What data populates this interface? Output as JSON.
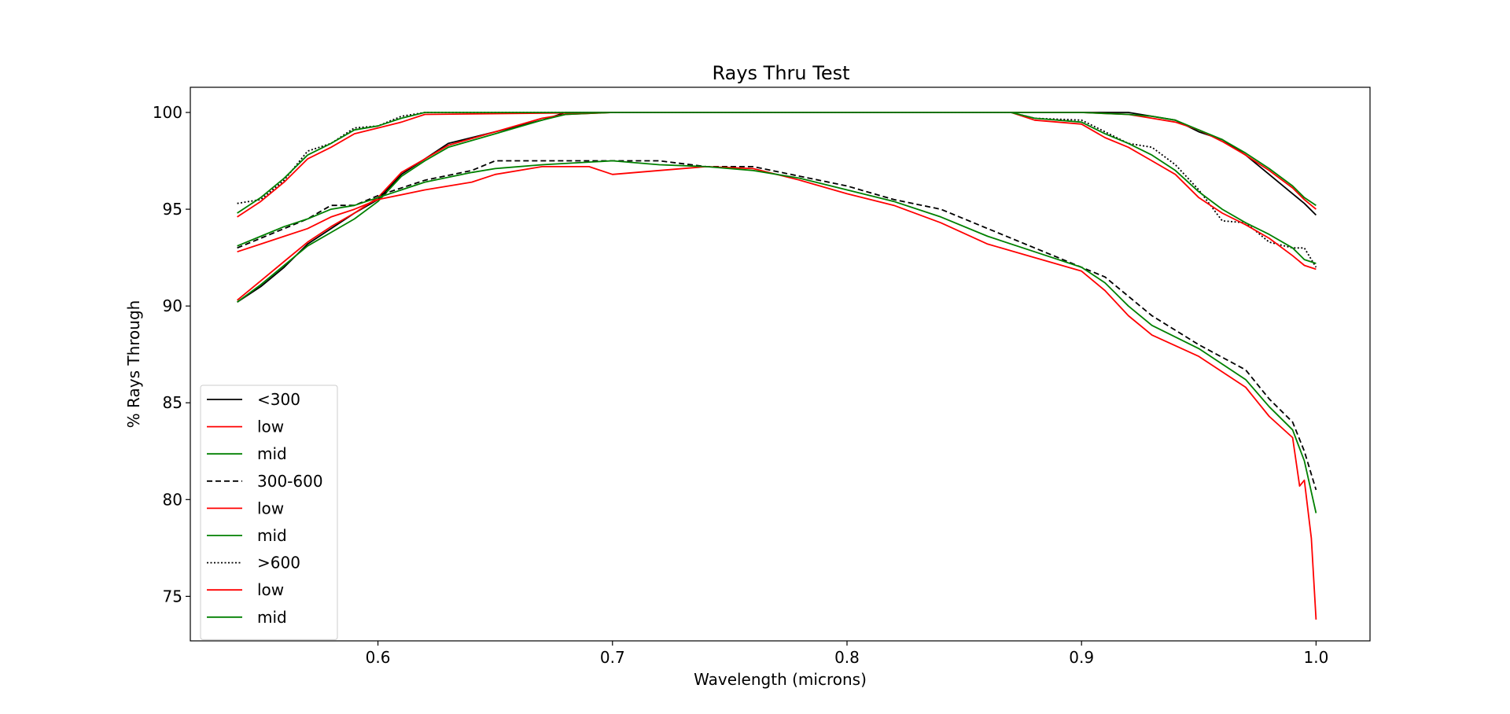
{
  "chart_data": {
    "type": "line",
    "title": "Rays Thru Test",
    "xlabel": "Wavelength (microns)",
    "ylabel": "% Rays Through",
    "xlim": [
      0.52,
      1.023
    ],
    "ylim": [
      72.7,
      101.3
    ],
    "xticks": [
      0.6,
      0.7,
      0.8,
      0.9,
      1.0
    ],
    "xtick_labels": [
      "0.6",
      "0.7",
      "0.8",
      "0.9",
      "1.0"
    ],
    "yticks": [
      75,
      80,
      85,
      90,
      95,
      100
    ],
    "ytick_labels": [
      "75",
      "80",
      "85",
      "90",
      "95",
      "100"
    ],
    "grid": false,
    "legend": {
      "position": "lower-left"
    },
    "series": [
      {
        "name": "<300",
        "color": "#000000",
        "dash": "solid",
        "x": [
          0.54,
          0.55,
          0.56,
          0.57,
          0.58,
          0.59,
          0.6,
          0.61,
          0.62,
          0.63,
          0.65,
          0.67,
          0.68,
          0.7,
          0.75,
          0.8,
          0.85,
          0.88,
          0.9,
          0.92,
          0.93,
          0.94,
          0.95,
          0.96,
          0.97,
          0.98,
          0.99,
          0.995,
          1.0
        ],
        "y": [
          90.2,
          91.0,
          92.0,
          93.2,
          94.0,
          94.8,
          95.5,
          96.8,
          97.6,
          98.4,
          99.0,
          99.6,
          100,
          100,
          100,
          100,
          100,
          100,
          100,
          100,
          99.8,
          99.6,
          99.0,
          98.6,
          97.8,
          96.8,
          95.8,
          95.3,
          94.7
        ]
      },
      {
        "name": "low",
        "color": "#ff0000",
        "dash": "solid",
        "x": [
          0.54,
          0.55,
          0.56,
          0.57,
          0.58,
          0.59,
          0.6,
          0.61,
          0.62,
          0.63,
          0.65,
          0.67,
          0.68,
          0.7,
          0.75,
          0.8,
          0.85,
          0.88,
          0.9,
          0.92,
          0.93,
          0.94,
          0.95,
          0.96,
          0.97,
          0.98,
          0.99,
          0.995,
          1.0
        ],
        "y": [
          90.3,
          91.3,
          92.3,
          93.3,
          94.1,
          94.8,
          95.6,
          96.9,
          97.6,
          98.3,
          99.0,
          99.7,
          99.9,
          100,
          100,
          100,
          100,
          100,
          100,
          99.9,
          99.7,
          99.5,
          99.1,
          98.5,
          97.8,
          97.0,
          96.1,
          95.5,
          95.0
        ]
      },
      {
        "name": "mid",
        "color": "#008000",
        "dash": "solid",
        "x": [
          0.54,
          0.55,
          0.56,
          0.57,
          0.58,
          0.59,
          0.6,
          0.61,
          0.62,
          0.63,
          0.65,
          0.67,
          0.68,
          0.7,
          0.75,
          0.8,
          0.85,
          0.88,
          0.9,
          0.92,
          0.93,
          0.94,
          0.95,
          0.96,
          0.97,
          0.98,
          0.99,
          0.995,
          1.0
        ],
        "y": [
          90.2,
          91.1,
          92.1,
          93.1,
          93.8,
          94.5,
          95.4,
          96.7,
          97.5,
          98.2,
          98.9,
          99.6,
          99.9,
          100,
          100,
          100,
          100,
          100,
          100,
          99.9,
          99.8,
          99.6,
          99.1,
          98.6,
          97.9,
          97.1,
          96.2,
          95.6,
          95.2
        ]
      },
      {
        "name": "300-600",
        "color": "#000000",
        "dash": "dashed",
        "x": [
          0.54,
          0.55,
          0.56,
          0.57,
          0.58,
          0.59,
          0.6,
          0.62,
          0.64,
          0.65,
          0.67,
          0.7,
          0.72,
          0.74,
          0.76,
          0.78,
          0.8,
          0.82,
          0.84,
          0.86,
          0.88,
          0.9,
          0.91,
          0.92,
          0.93,
          0.95,
          0.97,
          0.98,
          0.99,
          0.995,
          1.0
        ],
        "y": [
          93.0,
          93.5,
          94.0,
          94.5,
          95.2,
          95.2,
          95.7,
          96.5,
          97.0,
          97.5,
          97.5,
          97.5,
          97.5,
          97.2,
          97.2,
          96.7,
          96.2,
          95.5,
          95.0,
          94.0,
          93.0,
          92.0,
          91.5,
          90.5,
          89.5,
          88.0,
          86.7,
          85.2,
          84.0,
          82.5,
          80.5
        ]
      },
      {
        "name": "low",
        "color": "#ff0000",
        "dash": "solid",
        "x": [
          0.54,
          0.55,
          0.56,
          0.57,
          0.58,
          0.59,
          0.6,
          0.62,
          0.64,
          0.65,
          0.67,
          0.69,
          0.7,
          0.72,
          0.74,
          0.76,
          0.78,
          0.8,
          0.82,
          0.84,
          0.86,
          0.88,
          0.9,
          0.91,
          0.92,
          0.93,
          0.95,
          0.97,
          0.98,
          0.99,
          0.993,
          0.995,
          0.998,
          1.0
        ],
        "y": [
          92.8,
          93.2,
          93.6,
          94.0,
          94.6,
          95.0,
          95.5,
          96.0,
          96.4,
          96.8,
          97.2,
          97.2,
          96.8,
          97.0,
          97.2,
          97.1,
          96.5,
          95.8,
          95.2,
          94.3,
          93.2,
          92.5,
          91.8,
          90.8,
          89.5,
          88.5,
          87.4,
          85.8,
          84.3,
          83.2,
          80.7,
          81.0,
          78.0,
          73.8
        ]
      },
      {
        "name": "mid",
        "color": "#008000",
        "dash": "solid",
        "x": [
          0.54,
          0.55,
          0.56,
          0.57,
          0.58,
          0.59,
          0.6,
          0.62,
          0.64,
          0.65,
          0.67,
          0.7,
          0.72,
          0.74,
          0.76,
          0.78,
          0.8,
          0.82,
          0.84,
          0.86,
          0.88,
          0.9,
          0.91,
          0.92,
          0.93,
          0.95,
          0.97,
          0.98,
          0.99,
          0.995,
          1.0
        ],
        "y": [
          93.1,
          93.6,
          94.1,
          94.5,
          95.0,
          95.2,
          95.6,
          96.4,
          96.9,
          97.1,
          97.3,
          97.5,
          97.3,
          97.2,
          97.0,
          96.6,
          96.0,
          95.4,
          94.6,
          93.6,
          92.8,
          92.0,
          91.2,
          90.0,
          89.0,
          87.8,
          86.2,
          84.8,
          83.6,
          82.0,
          79.3
        ]
      },
      {
        "name": ">600",
        "color": "#000000",
        "dash": "dotted",
        "x": [
          0.54,
          0.55,
          0.56,
          0.57,
          0.58,
          0.59,
          0.6,
          0.61,
          0.62,
          0.7,
          0.8,
          0.85,
          0.87,
          0.88,
          0.9,
          0.91,
          0.92,
          0.93,
          0.94,
          0.95,
          0.96,
          0.97,
          0.98,
          0.99,
          0.995,
          1.0
        ],
        "y": [
          95.3,
          95.5,
          96.5,
          98.0,
          98.4,
          99.2,
          99.3,
          99.8,
          100,
          100,
          100,
          100,
          100,
          99.7,
          99.6,
          99.0,
          98.4,
          98.2,
          97.3,
          96.0,
          94.4,
          94.3,
          93.3,
          93.0,
          93.0,
          92.0
        ]
      },
      {
        "name": "low",
        "color": "#ff0000",
        "dash": "solid",
        "x": [
          0.54,
          0.55,
          0.56,
          0.57,
          0.58,
          0.59,
          0.6,
          0.61,
          0.62,
          0.7,
          0.8,
          0.85,
          0.87,
          0.88,
          0.9,
          0.91,
          0.92,
          0.93,
          0.94,
          0.95,
          0.96,
          0.97,
          0.98,
          0.99,
          0.995,
          1.0
        ],
        "y": [
          94.6,
          95.4,
          96.4,
          97.6,
          98.2,
          98.9,
          99.2,
          99.5,
          99.9,
          100,
          100,
          100,
          100,
          99.6,
          99.4,
          98.7,
          98.2,
          97.5,
          96.8,
          95.6,
          94.8,
          94.2,
          93.5,
          92.6,
          92.1,
          91.9
        ]
      },
      {
        "name": "mid",
        "color": "#008000",
        "dash": "solid",
        "x": [
          0.54,
          0.55,
          0.56,
          0.57,
          0.58,
          0.59,
          0.6,
          0.61,
          0.62,
          0.7,
          0.8,
          0.85,
          0.87,
          0.88,
          0.9,
          0.91,
          0.92,
          0.93,
          0.94,
          0.95,
          0.96,
          0.97,
          0.98,
          0.99,
          0.995,
          1.0
        ],
        "y": [
          94.8,
          95.6,
          96.6,
          97.8,
          98.4,
          99.1,
          99.3,
          99.7,
          100,
          100,
          100,
          100,
          100,
          99.7,
          99.5,
          98.9,
          98.4,
          97.8,
          97.0,
          95.9,
          95.0,
          94.3,
          93.7,
          93.0,
          92.4,
          92.2
        ]
      }
    ]
  }
}
